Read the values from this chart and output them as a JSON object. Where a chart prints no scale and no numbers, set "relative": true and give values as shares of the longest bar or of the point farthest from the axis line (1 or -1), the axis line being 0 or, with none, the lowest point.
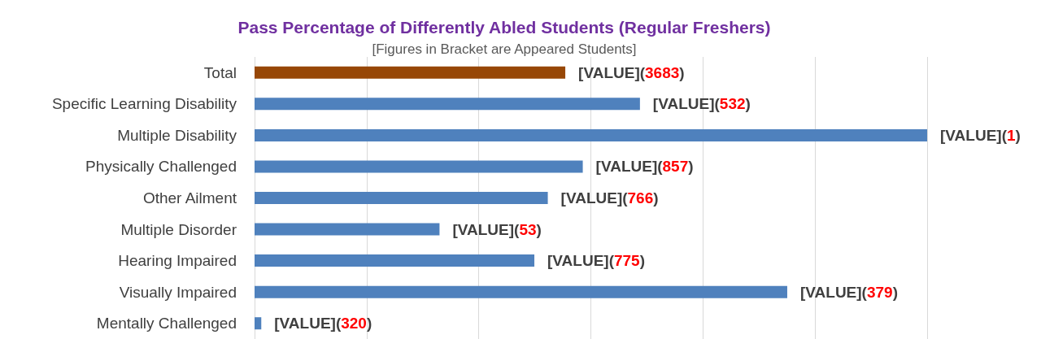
{
  "chart_data": {
    "type": "bar",
    "orientation": "horizontal",
    "relative": true,
    "title": "Pass Percentage of Differently Abled Students (Regular Freshers)",
    "subtitle": "[Figures in Bracket are Appeared Students]",
    "categories": [
      "Total",
      "Specific Learning Disability",
      "Multiple Disability",
      "Physically Challenged",
      "Other Ailment",
      "Multiple Disorder",
      "Hearing Impaired",
      "Visually Impaired",
      "Mentally Challenged"
    ],
    "values": [
      0.462,
      0.573,
      1,
      0.488,
      0.436,
      0.275,
      0.416,
      0.792,
      0.01
    ],
    "colors": [
      "#974706",
      "#4f81bd",
      "#4f81bd",
      "#4f81bd",
      "#4f81bd",
      "#4f81bd",
      "#4f81bd",
      "#4f81bd",
      "#4f81bd"
    ],
    "annotations": [
      {
        "text": "[VALUE](3683)",
        "x": 0.462,
        "y": "Total"
      },
      {
        "text": "[VALUE](532)",
        "x": 0.573,
        "y": "Specific Learning Disability"
      },
      {
        "text": "[VALUE](1)",
        "x": 1,
        "y": "Multiple Disability"
      },
      {
        "text": "[VALUE](857)",
        "x": 0.488,
        "y": "Physically Challenged"
      },
      {
        "text": "[VALUE](766)",
        "x": 0.436,
        "y": "Other Ailment"
      },
      {
        "text": "[VALUE](53)",
        "x": 0.275,
        "y": "Multiple Disorder"
      },
      {
        "text": "[VALUE](775)",
        "x": 0.416,
        "y": "Hearing Impaired"
      },
      {
        "text": "[VALUE](379)",
        "x": 0.792,
        "y": "Visually Impaired"
      },
      {
        "text": "[VALUE](320)",
        "x": 0.01,
        "y": "Mentally Challenged"
      }
    ],
    "grid": true
  }
}
